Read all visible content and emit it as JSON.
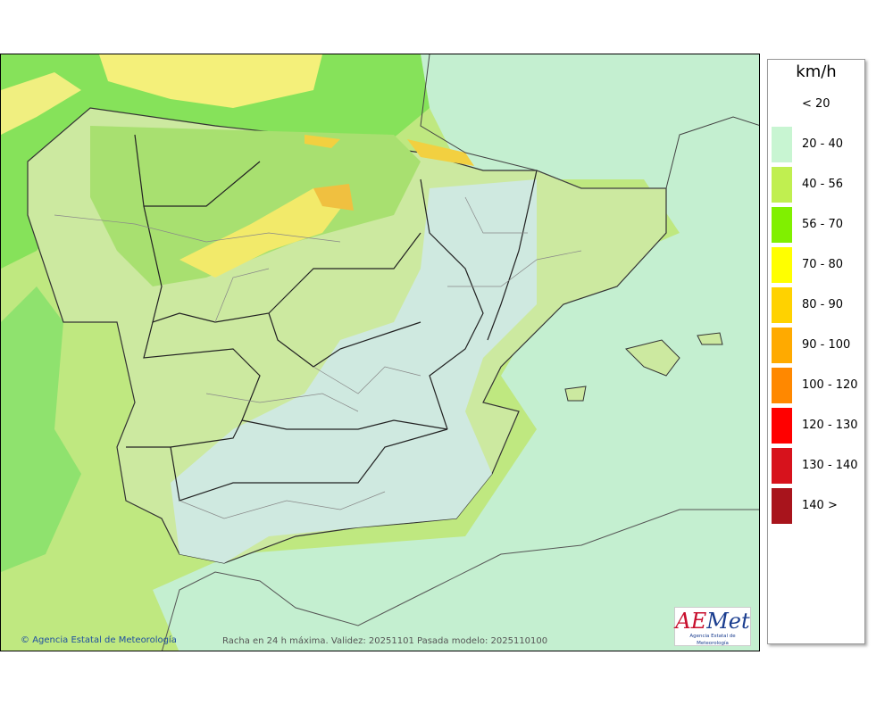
{
  "map": {
    "credit": "Agencia Estatal de Meteorología",
    "caption": "Racha en 24 h máxima. Validez: 20251101 Pasada modelo: 2025110100",
    "logo_text": "Met",
    "logo_ae": "AE",
    "logo_sub": "Agencia Estatal de Meteorología"
  },
  "legend": {
    "unit": "km/h",
    "items": [
      {
        "label": "< 20",
        "color": "#ffffff"
      },
      {
        "label": "20 - 40",
        "color": "#c8f5d2"
      },
      {
        "label": "40 - 56",
        "color": "#c0ef50"
      },
      {
        "label": "56 - 70",
        "color": "#80f000"
      },
      {
        "label": "70 - 80",
        "color": "#ffff00"
      },
      {
        "label": "80 - 90",
        "color": "#ffd200"
      },
      {
        "label": "90 - 100",
        "color": "#ffaa00"
      },
      {
        "label": "100 - 120",
        "color": "#ff8800"
      },
      {
        "label": "120 - 130",
        "color": "#ff0000"
      },
      {
        "label": "130 - 140",
        "color": "#d7121c"
      },
      {
        "label": "140 >",
        "color": "#a8141c"
      }
    ]
  }
}
